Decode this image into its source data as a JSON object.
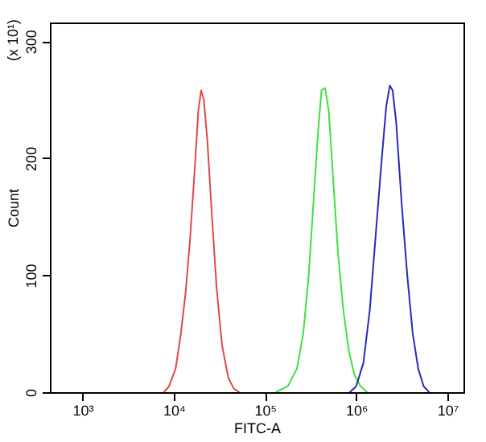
{
  "chart_data": {
    "type": "line",
    "xlabel": "FITC-A",
    "ylabel": "Count",
    "annotations": [
      "(x 10¹)"
    ],
    "log": "x",
    "xlim": [
      440,
      15000000
    ],
    "ylim": [
      0,
      316
    ],
    "xticks": [
      {
        "value": 1000,
        "label": "10³"
      },
      {
        "value": 10000,
        "label": "10⁴"
      },
      {
        "value": 100000,
        "label": "10⁵"
      },
      {
        "value": 1000000,
        "label": "10⁶"
      },
      {
        "value": 10000000,
        "label": "10⁷"
      }
    ],
    "yticks": [
      0,
      100,
      200,
      300
    ],
    "grid": false,
    "marker": "none",
    "line_style": "solid",
    "series": [
      {
        "color": "#e04848",
        "x": [
          7800,
          8900,
          10500,
          12000,
          13500,
          15100,
          17000,
          18600,
          20000,
          21400,
          23400,
          26300,
          29500,
          33900,
          39800,
          45700,
          52500
        ],
        "values": [
          0,
          5,
          20,
          50,
          85,
          130,
          190,
          240,
          258,
          250,
          215,
          150,
          90,
          40,
          12,
          3,
          0
        ]
      },
      {
        "color": "#40e040",
        "x": [
          132000,
          178000,
          224000,
          263000,
          302000,
          339000,
          380000,
          417000,
          457000,
          501000,
          562000,
          631000,
          724000,
          832000,
          955000,
          1120000,
          1320000
        ],
        "values": [
          0,
          5,
          20,
          50,
          100,
          160,
          220,
          258,
          260,
          240,
          180,
          120,
          70,
          35,
          15,
          5,
          0
        ]
      },
      {
        "color": "#2828c0",
        "x": [
          851000,
          1000000,
          1200000,
          1410000,
          1660000,
          1910000,
          2140000,
          2340000,
          2510000,
          2750000,
          3160000,
          3630000,
          4170000,
          4790000,
          5500000,
          6310000
        ],
        "values": [
          0,
          5,
          25,
          70,
          140,
          200,
          245,
          262,
          258,
          230,
          160,
          100,
          50,
          20,
          5,
          0
        ]
      }
    ]
  }
}
